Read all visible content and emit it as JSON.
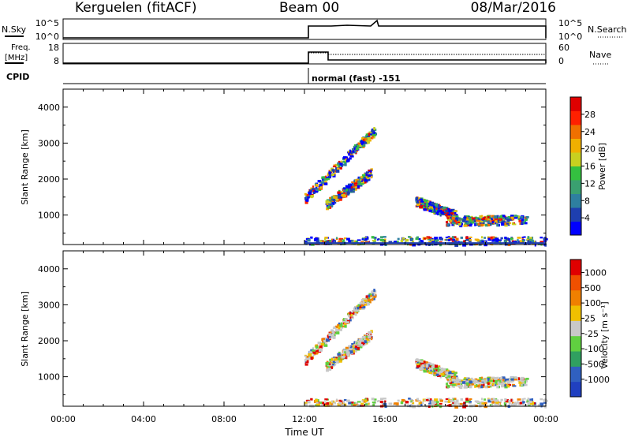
{
  "header": {
    "station": "Kerguelen (fitACF)",
    "beam": "Beam 00",
    "date": "08/Mar/2016"
  },
  "top_panels": {
    "nsky_label": "N.Sky",
    "nsky_ticks": [
      "10^5",
      "10^0"
    ],
    "nsearch_label": "N.Search",
    "nsearch_ticks": [
      "10^5",
      "10^0"
    ],
    "freq_label_1": "Freq.",
    "freq_label_2": "[MHz]",
    "freq_ticks": [
      "18",
      "8"
    ],
    "nave_label": "Nave",
    "nave_ticks": [
      "60",
      "0"
    ],
    "cpid_label": "CPID",
    "cpid_text": "normal (fast) -151"
  },
  "x_axis": {
    "label": "Time UT",
    "ticks": [
      "00:00",
      "04:00",
      "08:00",
      "12:00",
      "16:00",
      "20:00",
      "00:00"
    ]
  },
  "power_panel": {
    "ylabel": "Slant Range [km]",
    "yticks": [
      "4000",
      "3000",
      "2000",
      "1000"
    ],
    "cbar_label": "Power [dB]",
    "cbar_ticks": [
      "28",
      "24",
      "20",
      "16",
      "12",
      "8",
      "4"
    ],
    "cbar_colors": [
      "#0000ff",
      "#1e3fb0",
      "#2e7fa0",
      "#3aa070",
      "#34c040",
      "#c8d020",
      "#f0b000",
      "#f07000",
      "#ff2000",
      "#e00000"
    ]
  },
  "velocity_panel": {
    "ylabel": "Slant Range [km]",
    "yticks": [
      "4000",
      "3000",
      "2000",
      "1000"
    ],
    "cbar_label": "Velocity [m s⁻¹]",
    "cbar_ticks": [
      "1000",
      "500",
      "100",
      "25",
      "-25",
      "-100",
      "-500",
      "-1000"
    ],
    "cbar_colors": [
      "#2040c0",
      "#3060c0",
      "#30a060",
      "#60d040",
      "#c8c8c8",
      "#f0c000",
      "#f08000",
      "#f05000",
      "#e00000"
    ]
  },
  "chart_data": {
    "type": "heatmap",
    "x_range": [
      "00:00",
      "24:00"
    ],
    "y_range_km": [
      180,
      4500
    ],
    "power_scale_db": [
      0,
      30
    ],
    "velocity_scale_ms": [
      -1000,
      1000
    ],
    "data_start": "12:00",
    "scatter_features": [
      {
        "name": "band-a",
        "t_start": 12.0,
        "t_end": 15.5,
        "range_start": 1500,
        "range_end": 3400
      },
      {
        "name": "band-b",
        "t_start": 13.0,
        "t_end": 15.3,
        "range_start": 1300,
        "range_end": 2200
      },
      {
        "name": "band-c",
        "t_start": 17.5,
        "t_end": 19.5,
        "range_start": 1400,
        "range_end": 1000
      },
      {
        "name": "band-d",
        "t_start": 19.0,
        "t_end": 23.0,
        "range_start": 850,
        "range_end": 900
      },
      {
        "name": "near-range",
        "t_start": 12.0,
        "t_end": 24.0,
        "range_start": 250,
        "range_end": 300
      }
    ]
  }
}
